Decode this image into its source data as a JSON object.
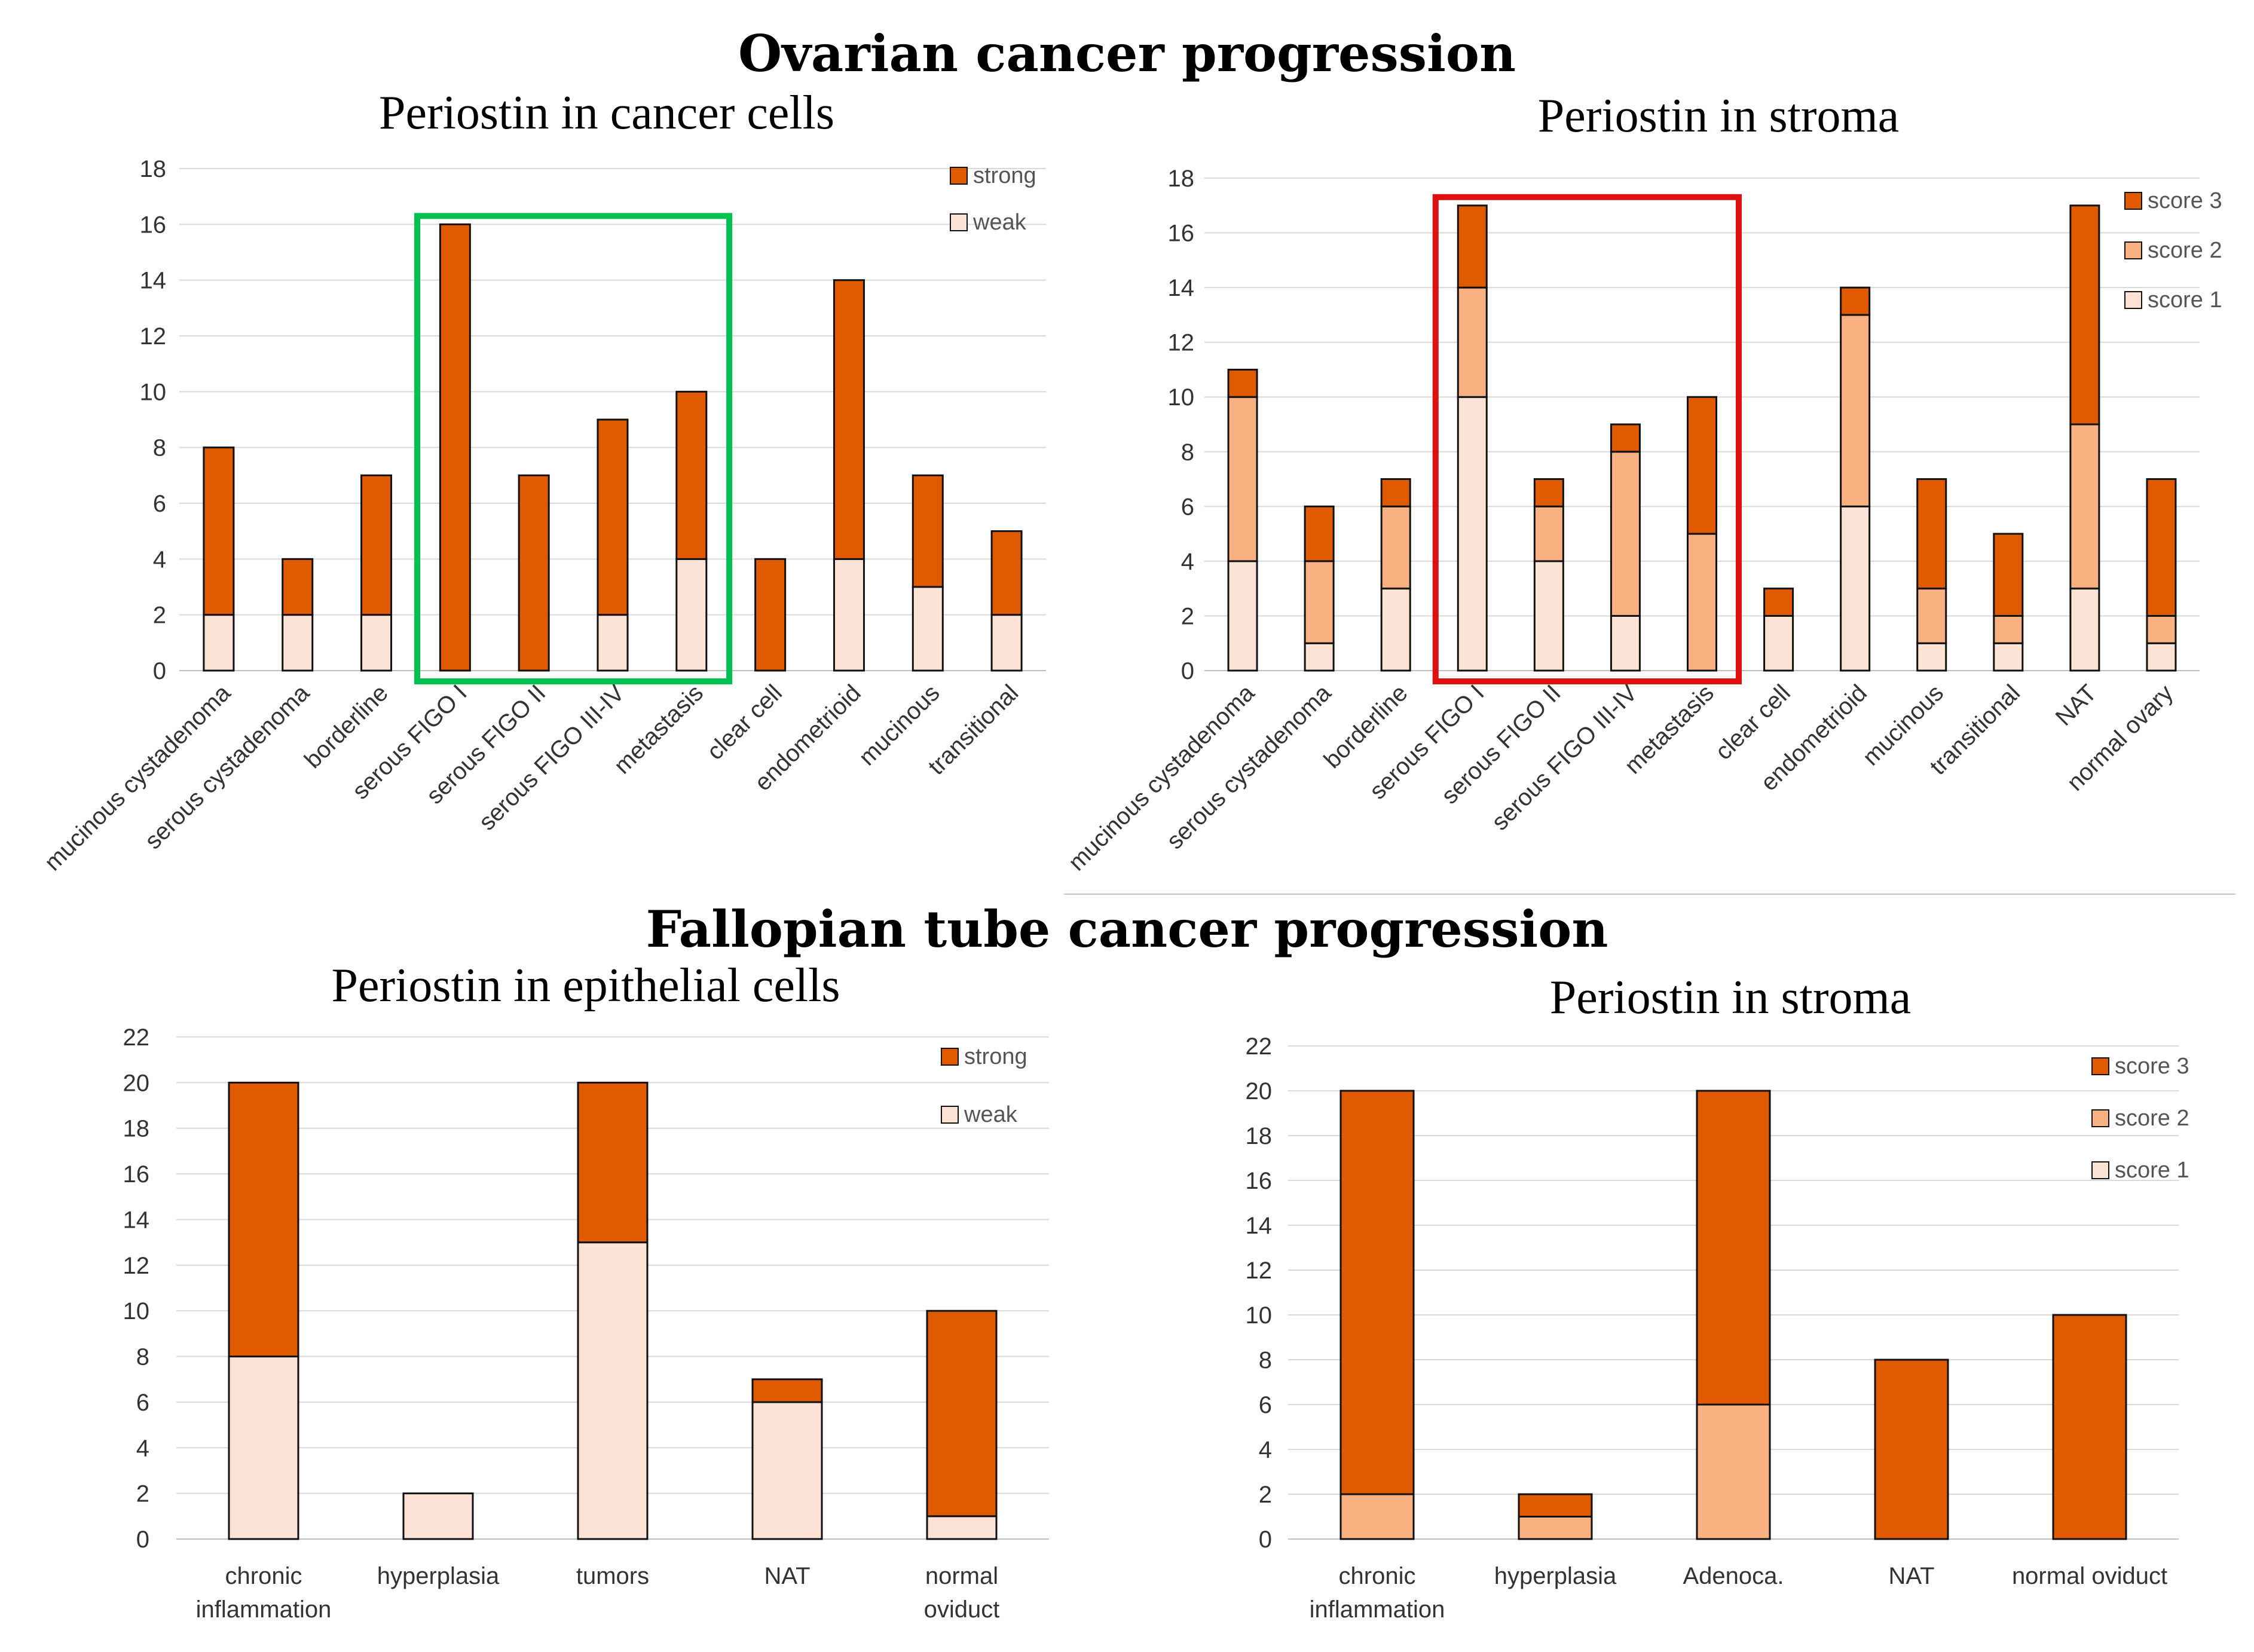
{
  "headings": {
    "ovarian": "Ovarian cancer progression",
    "fallopian": "Fallopian tube cancer progression"
  },
  "colors": {
    "strong": "#e05a00",
    "weak": "#fde3d5",
    "score3": "#e05a00",
    "score2": "#f9b182",
    "score1": "#fde3d5",
    "box_green": "#00c050",
    "box_red": "#e01010"
  },
  "chart_data": [
    {
      "type": "bar",
      "stacked": true,
      "title": "Periostin in cancer cells",
      "categories": [
        "mucinous cystadenoma",
        "serous cystadenoma",
        "borderline",
        "serous FIGO I",
        "serous FIGO II",
        "serous FIGO III-IV",
        "metastasis",
        "clear cell",
        "endometrioid",
        "mucinous",
        "transitional"
      ],
      "series": [
        {
          "name": "weak",
          "values": [
            2,
            2,
            2,
            0,
            0,
            2,
            4,
            0,
            4,
            3,
            2
          ]
        },
        {
          "name": "strong",
          "values": [
            6,
            2,
            5,
            16,
            7,
            7,
            6,
            4,
            10,
            4,
            3
          ]
        }
      ],
      "ylim": [
        0,
        18
      ],
      "yticks": [
        0,
        2,
        4,
        6,
        8,
        10,
        12,
        14,
        16,
        18
      ],
      "legend": [
        "strong",
        "weak"
      ],
      "legend_position": "top-right",
      "highlight": {
        "color": "green",
        "from_category": 3,
        "to_category": 6
      },
      "rotated_labels": true,
      "xlabel": "",
      "ylabel": ""
    },
    {
      "type": "bar",
      "stacked": true,
      "title": "Periostin in stroma",
      "categories": [
        "mucinous cystadenoma",
        "serous cystadenoma",
        "borderline",
        "serous FIGO I",
        "serous FIGO II",
        "serous FIGO III-IV",
        "metastasis",
        "clear cell",
        "endometrioid",
        "mucinous",
        "transitional",
        "NAT",
        "normal ovary"
      ],
      "series": [
        {
          "name": "score 1",
          "values": [
            4,
            1,
            3,
            10,
            4,
            2,
            0,
            2,
            6,
            1,
            1,
            3,
            1
          ]
        },
        {
          "name": "score 2",
          "values": [
            6,
            3,
            3,
            4,
            2,
            6,
            5,
            0,
            7,
            2,
            1,
            6,
            1
          ]
        },
        {
          "name": "score 3",
          "values": [
            1,
            2,
            1,
            3,
            1,
            1,
            5,
            1,
            1,
            4,
            3,
            8,
            5
          ]
        }
      ],
      "ylim": [
        0,
        18
      ],
      "yticks": [
        0,
        2,
        4,
        6,
        8,
        10,
        12,
        14,
        16,
        18
      ],
      "legend": [
        "score 3",
        "score 2",
        "score 1"
      ],
      "legend_position": "top-right",
      "highlight": {
        "color": "red",
        "from_category": 3,
        "to_category": 6
      },
      "rotated_labels": true,
      "xlabel": "",
      "ylabel": ""
    },
    {
      "type": "bar",
      "stacked": true,
      "title": "Periostin in epithelial cells",
      "categories": [
        "chronic inflammation",
        "hyperplasia",
        "tumors",
        "NAT",
        "normal oviduct"
      ],
      "category_lines": [
        [
          "chronic",
          "inflammation"
        ],
        [
          "hyperplasia"
        ],
        [
          "tumors"
        ],
        [
          "NAT"
        ],
        [
          "normal",
          "oviduct"
        ]
      ],
      "series": [
        {
          "name": "weak",
          "values": [
            8,
            2,
            13,
            6,
            1
          ]
        },
        {
          "name": "strong",
          "values": [
            12,
            0,
            7,
            1,
            9
          ]
        }
      ],
      "ylim": [
        0,
        22
      ],
      "yticks": [
        0,
        2,
        4,
        6,
        8,
        10,
        12,
        14,
        16,
        18,
        20,
        22
      ],
      "legend": [
        "strong",
        "weak"
      ],
      "legend_position": "top-right",
      "rotated_labels": false,
      "xlabel": "",
      "ylabel": ""
    },
    {
      "type": "bar",
      "stacked": true,
      "title": "Periostin in stroma",
      "categories": [
        "chronic inflammation",
        "hyperplasia",
        "Adenoca.",
        "NAT",
        "normal oviduct"
      ],
      "category_lines": [
        [
          "chronic",
          "inflammation"
        ],
        [
          "hyperplasia"
        ],
        [
          "Adenoca."
        ],
        [
          "NAT"
        ],
        [
          "normal oviduct"
        ]
      ],
      "series": [
        {
          "name": "score 1",
          "values": [
            0,
            0,
            0,
            0,
            0
          ]
        },
        {
          "name": "score 2",
          "values": [
            2,
            1,
            6,
            0,
            0
          ]
        },
        {
          "name": "score 3",
          "values": [
            18,
            1,
            14,
            8,
            10
          ]
        }
      ],
      "ylim": [
        0,
        22
      ],
      "yticks": [
        0,
        2,
        4,
        6,
        8,
        10,
        12,
        14,
        16,
        18,
        20,
        22
      ],
      "legend": [
        "score 3",
        "score 2",
        "score 1"
      ],
      "legend_position": "top-right",
      "rotated_labels": false,
      "xlabel": "",
      "ylabel": ""
    }
  ]
}
